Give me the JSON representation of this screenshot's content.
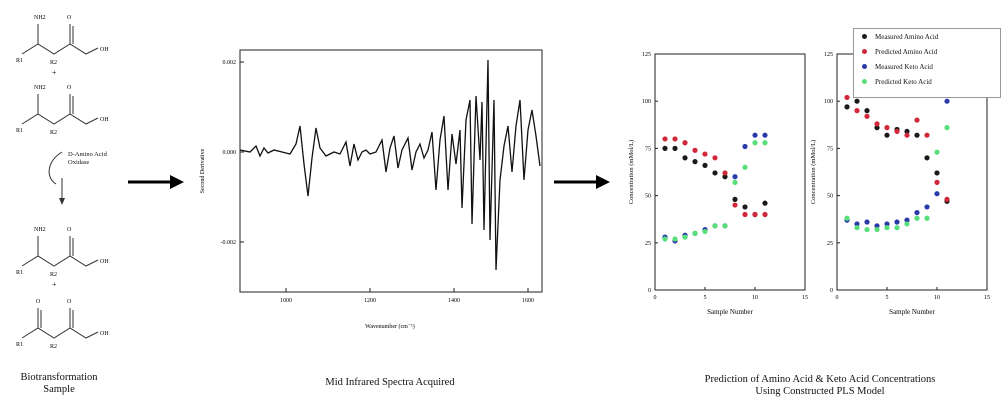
{
  "scheme": {
    "molecules": [
      {
        "top_sub": "NH2",
        "left_sub": "R1",
        "mid_sub": "R2",
        "end_sub": "OH"
      },
      {
        "top_sub": "NH2",
        "left_sub": "R1",
        "mid_sub": "R2",
        "end_sub": "OH"
      },
      {
        "top_sub": "NH2",
        "left_sub": "R1",
        "mid_sub": "R2",
        "end_sub": "OH"
      },
      {
        "top_sub": "O",
        "left_sub": "R1",
        "mid_sub": "R2",
        "end_sub": "OH"
      }
    ],
    "plus": "+",
    "enzyme": "D-Amino Acid Oxidase",
    "caption": "Biotransformation Sample"
  },
  "spectrum": {
    "ylabel": "Second Derivative",
    "xlabel": "Wavenumber (cm⁻¹)",
    "yticks": [
      "0.002",
      "0.000",
      "-0.002"
    ],
    "xticks": [
      "1000",
      "1200",
      "1400",
      "1600"
    ],
    "caption": "Mid Infrared Spectra Acquired"
  },
  "prediction": {
    "caption_line1": "Prediction of Amino Acid & Keto Acid Concentrations",
    "caption_line2": "Using Constructed PLS Model"
  },
  "legend": [
    {
      "label": "Measured Amino Acid",
      "color": "#1a1a1a"
    },
    {
      "label": "Predicted Amino Acid",
      "color": "#d0283a"
    },
    {
      "label": "Measured Keto Acid",
      "color": "#2a3aa8"
    },
    {
      "label": "Predicted Keto Acid",
      "color": "#57e07a"
    }
  ],
  "chart_data": [
    {
      "type": "scatter",
      "xlabel": "Sample Number",
      "ylabel": "Concentration (mMol/L)",
      "xlim": [
        0,
        15
      ],
      "ylim": [
        0,
        125
      ],
      "xticks": [
        0,
        5,
        10,
        15
      ],
      "yticks": [
        0,
        25,
        50,
        75,
        100,
        125
      ],
      "series": [
        {
          "name": "Measured Amino Acid",
          "x": [
            1,
            2,
            3,
            4,
            5,
            6,
            7,
            8,
            9,
            10,
            11
          ],
          "y": [
            75,
            75,
            70,
            68,
            66,
            62,
            60,
            48,
            44,
            40,
            46
          ]
        },
        {
          "name": "Predicted Amino Acid",
          "x": [
            1,
            2,
            3,
            4,
            5,
            6,
            7,
            8,
            9,
            10,
            11
          ],
          "y": [
            80,
            80,
            78,
            74,
            72,
            70,
            62,
            45,
            40,
            40,
            40
          ]
        },
        {
          "name": "Measured Keto Acid",
          "x": [
            1,
            2,
            3,
            4,
            5,
            6,
            7,
            8,
            9,
            10,
            11
          ],
          "y": [
            28,
            26,
            29,
            30,
            32,
            34,
            34,
            60,
            76,
            82,
            82
          ]
        },
        {
          "name": "Predicted Keto Acid",
          "x": [
            1,
            2,
            3,
            4,
            5,
            6,
            7,
            8,
            9,
            10,
            11
          ],
          "y": [
            27,
            27,
            28,
            30,
            31,
            34,
            34,
            57,
            65,
            78,
            78
          ]
        }
      ]
    },
    {
      "type": "scatter",
      "xlabel": "Sample Number",
      "ylabel": "Concentration (mMol/L)",
      "xlim": [
        0,
        15
      ],
      "ylim": [
        0,
        125
      ],
      "xticks": [
        0,
        5,
        10,
        15
      ],
      "yticks": [
        0,
        25,
        50,
        75,
        100,
        125
      ],
      "series": [
        {
          "name": "Measured Amino Acid",
          "x": [
            1,
            2,
            3,
            4,
            5,
            6,
            7,
            8,
            9,
            10,
            11
          ],
          "y": [
            97,
            100,
            95,
            86,
            82,
            85,
            84,
            82,
            70,
            62,
            47
          ]
        },
        {
          "name": "Predicted Amino Acid",
          "x": [
            1,
            2,
            3,
            4,
            5,
            6,
            7,
            8,
            9,
            10,
            11
          ],
          "y": [
            102,
            95,
            92,
            88,
            86,
            84,
            82,
            90,
            82,
            57,
            48
          ]
        },
        {
          "name": "Measured Keto Acid",
          "x": [
            1,
            2,
            3,
            4,
            5,
            6,
            7,
            8,
            9,
            10,
            11
          ],
          "y": [
            37,
            35,
            36,
            34,
            35,
            36,
            37,
            41,
            44,
            51,
            100
          ]
        },
        {
          "name": "Predicted Keto Acid",
          "x": [
            1,
            2,
            3,
            4,
            5,
            6,
            7,
            8,
            9,
            10,
            11
          ],
          "y": [
            38,
            33,
            32,
            32,
            33,
            33,
            35,
            38,
            38,
            73,
            86
          ]
        }
      ]
    }
  ]
}
